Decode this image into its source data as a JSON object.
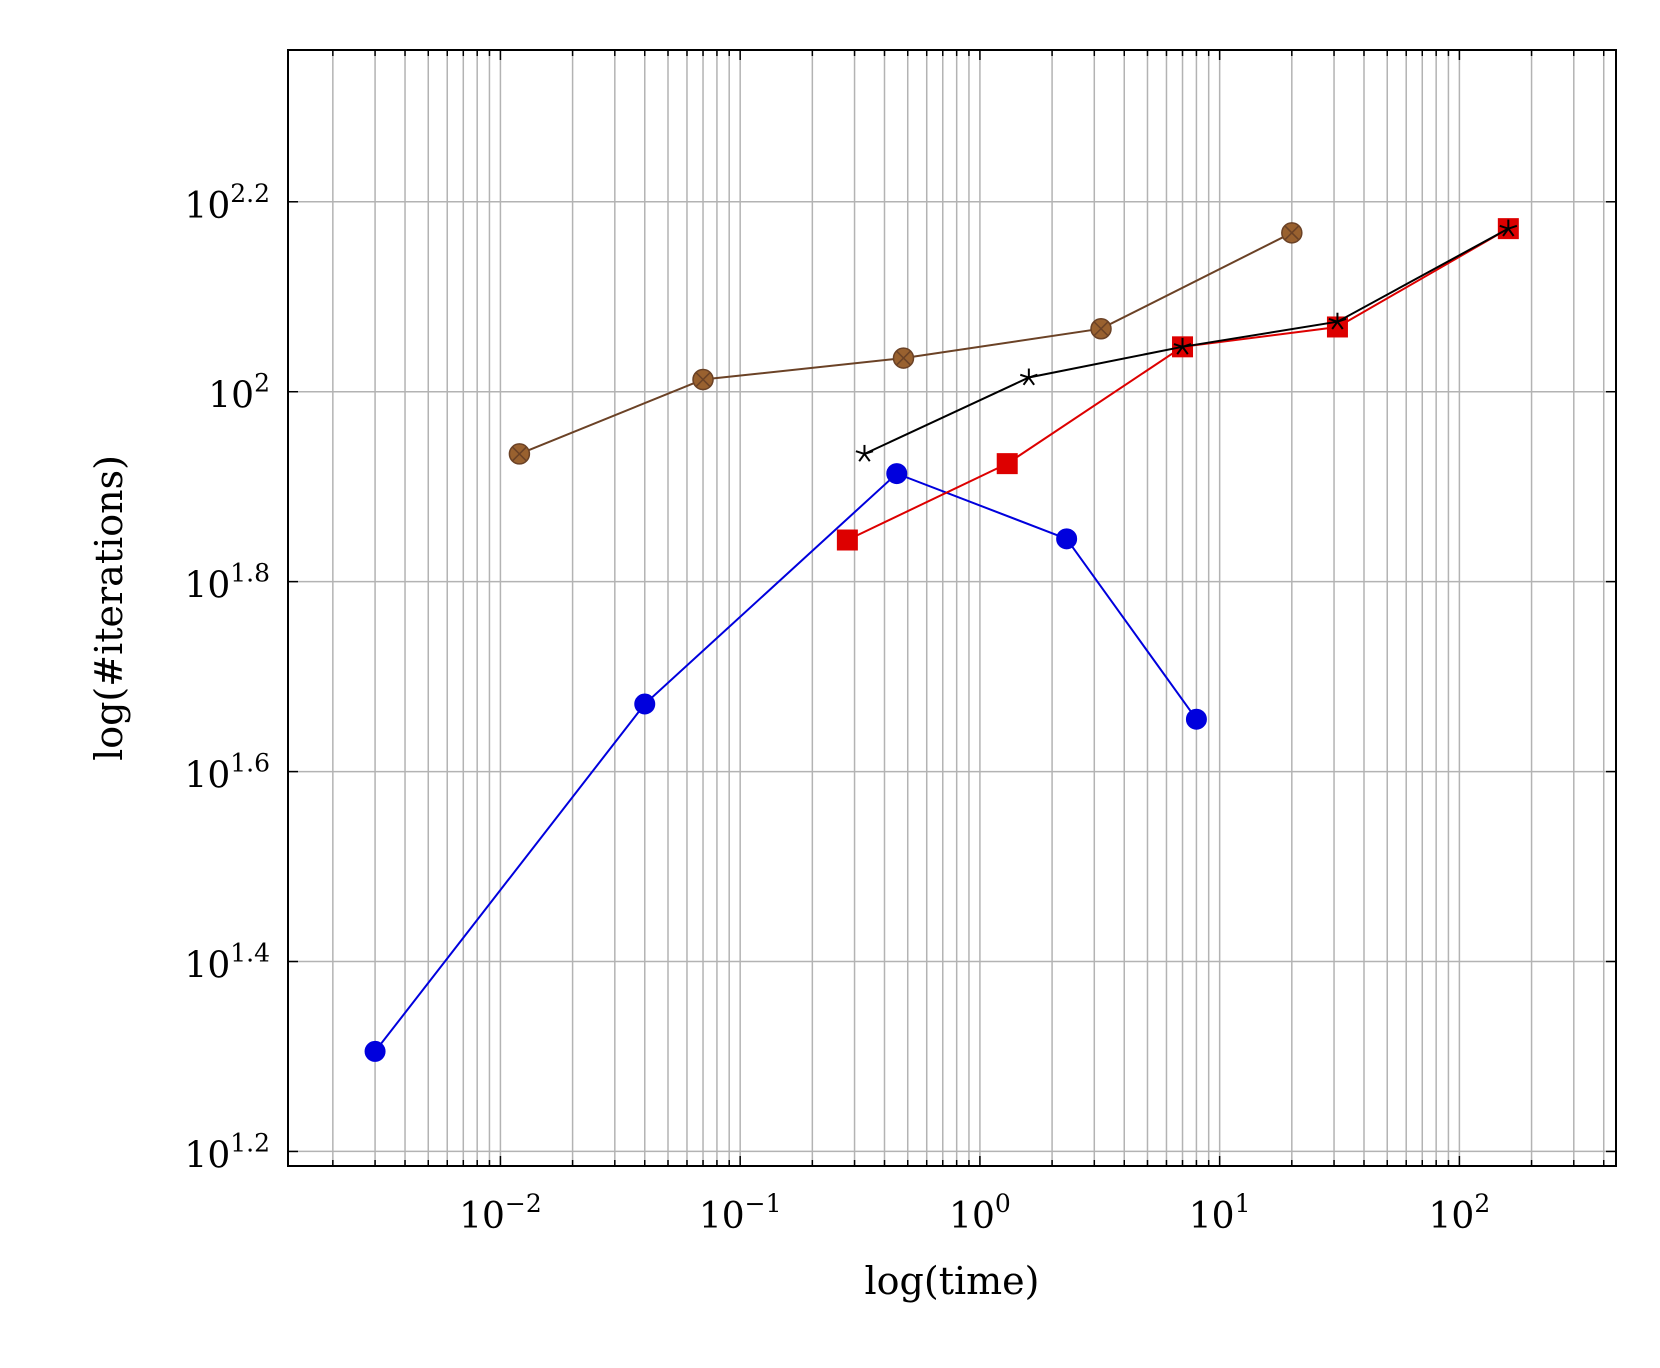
{
  "chart_data": {
    "type": "line",
    "title": "",
    "xlabel": "log(time)",
    "ylabel": "log(#iterations)",
    "xscale": "log",
    "yscale": "log",
    "xlim": [
      0.0013,
      450
    ],
    "ylim": [
      15.3,
      229
    ],
    "grid": true,
    "grid_minor_x": true,
    "legend": "none",
    "x_ticks": [
      {
        "value": 0.01,
        "base": "10",
        "exp": "−2"
      },
      {
        "value": 0.1,
        "base": "10",
        "exp": "−1"
      },
      {
        "value": 1,
        "base": "10",
        "exp": "0"
      },
      {
        "value": 10,
        "base": "10",
        "exp": "1"
      },
      {
        "value": 100,
        "base": "10",
        "exp": "2"
      }
    ],
    "y_ticks": [
      {
        "value": 15.85,
        "base": "10",
        "exp": "1.2"
      },
      {
        "value": 25.12,
        "base": "10",
        "exp": "1.4"
      },
      {
        "value": 39.81,
        "base": "10",
        "exp": "1.6"
      },
      {
        "value": 63.1,
        "base": "10",
        "exp": "1.8"
      },
      {
        "value": 100,
        "base": "10",
        "exp": "2"
      },
      {
        "value": 158.49,
        "base": "10",
        "exp": "2.2"
      }
    ],
    "series": [
      {
        "color": "#0000dd",
        "marker": "circle",
        "points": [
          [
            0.003,
            20.2
          ],
          [
            0.04,
            46.9
          ],
          [
            0.45,
            82.0
          ],
          [
            2.3,
            70.0
          ],
          [
            8.0,
            45.2
          ]
        ]
      },
      {
        "color": "#dd0000",
        "marker": "square",
        "points": [
          [
            0.28,
            69.8
          ],
          [
            1.3,
            84.0
          ],
          [
            7.0,
            111.5
          ],
          [
            31.0,
            117.0
          ],
          [
            160.0,
            148.5
          ]
        ]
      },
      {
        "color": "#000000",
        "marker": "star",
        "points": [
          [
            0.33,
            86.0
          ],
          [
            1.6,
            103.5
          ],
          [
            7.0,
            111.5
          ],
          [
            31.0,
            118.5
          ],
          [
            160.0,
            148.5
          ]
        ]
      },
      {
        "color": "#6b4226",
        "marker_fill": "#99612f",
        "marker": "circle-x",
        "points": [
          [
            0.012,
            86.0
          ],
          [
            0.07,
            103.0
          ],
          [
            0.48,
            108.5
          ],
          [
            3.2,
            116.5
          ],
          [
            20.0,
            147.0
          ]
        ]
      }
    ]
  }
}
